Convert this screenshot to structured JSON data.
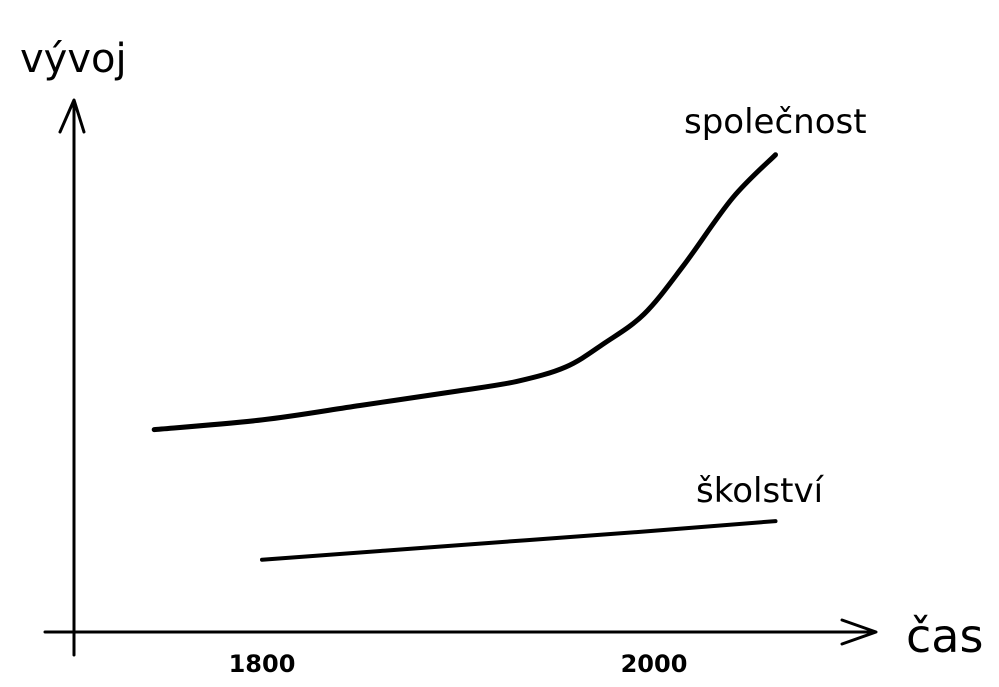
{
  "chart_data": {
    "type": "line",
    "title": "",
    "xlabel": "čas",
    "ylabel": "vývoj",
    "xlim": [
      1700,
      2120
    ],
    "ylim": [
      0,
      100
    ],
    "x_ticks": [
      1800,
      2000
    ],
    "grid": false,
    "legend": "none",
    "series": [
      {
        "name": "společnost",
        "x": [
          1745,
          1800,
          1850,
          1900,
          1930,
          1955,
          1975,
          1995,
          2015,
          2040,
          2062
        ],
        "y": [
          42,
          44,
          47,
          50,
          52,
          55,
          60,
          66,
          76,
          90,
          99
        ]
      },
      {
        "name": "školství",
        "x": [
          1800,
          1900,
          2000,
          2062
        ],
        "y": [
          15,
          18,
          21,
          23
        ]
      }
    ]
  }
}
